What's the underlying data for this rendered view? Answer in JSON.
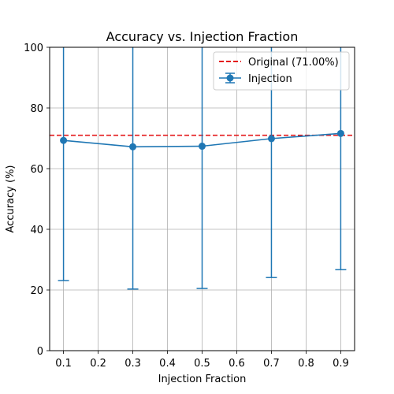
{
  "chart_data": {
    "type": "line",
    "title": "Accuracy vs. Injection Fraction",
    "xlabel": "Injection Fraction",
    "ylabel": "Accuracy (%)",
    "xlim": [
      0.06,
      0.94
    ],
    "ylim": [
      0,
      100
    ],
    "xticks": [
      0.1,
      0.2,
      0.3,
      0.4,
      0.5,
      0.6,
      0.7,
      0.8,
      0.9
    ],
    "yticks": [
      0,
      20,
      40,
      60,
      80,
      100
    ],
    "grid": true,
    "legend_position": "top-right",
    "reference_line": {
      "label": "Original (71.00%)",
      "value": 71.0,
      "color": "#e41a1c",
      "style": "dashed"
    },
    "series": [
      {
        "name": "Injection",
        "color": "#1f77b4",
        "x": [
          0.1,
          0.3,
          0.5,
          0.7,
          0.9
        ],
        "y": [
          69.3,
          67.2,
          67.4,
          69.9,
          71.6
        ],
        "error_lower": [
          23.1,
          20.3,
          20.5,
          24.1,
          26.7
        ],
        "error_upper": [
          115.5,
          114.1,
          114.3,
          115.7,
          116.5
        ]
      }
    ]
  }
}
